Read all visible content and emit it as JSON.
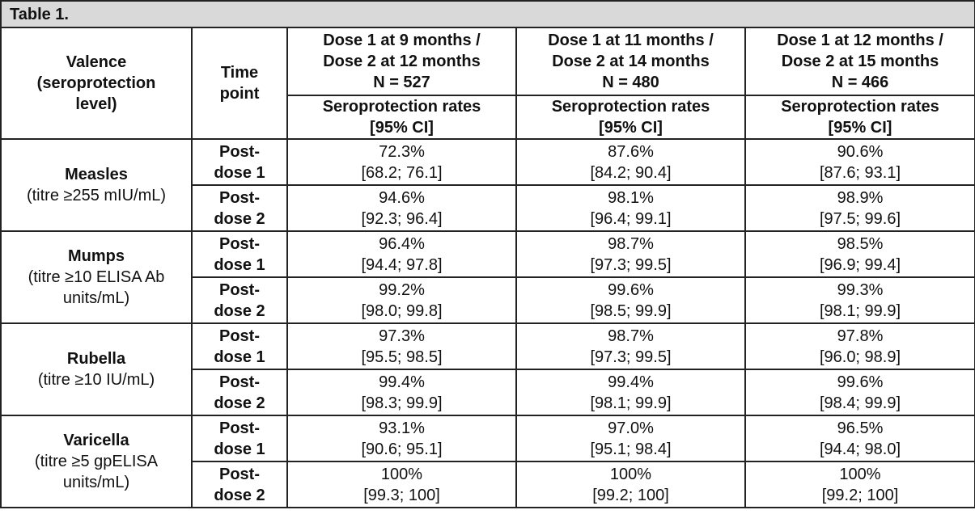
{
  "caption": "Table 1.",
  "headers": {
    "valence": "Valence (seroprotection level)",
    "time_point": "Time point",
    "groups": [
      {
        "line1": "Dose 1 at 9 months /",
        "line2": "Dose 2 at 12 months",
        "n": "N = 527"
      },
      {
        "line1": "Dose 1 at 11 months /",
        "line2": "Dose 2 at 14 months",
        "n": "N = 480"
      },
      {
        "line1": "Dose 1 at 12 months /",
        "line2": "Dose 2 at 15 months",
        "n": "N = 466"
      }
    ],
    "sub": {
      "line1": "Seroprotection rates",
      "line2": "[95% CI]"
    }
  },
  "valences": [
    {
      "name": "Measles",
      "level": "(titre ≥255 mIU/mL)",
      "rows": [
        {
          "time": "Post-dose 1",
          "cells": [
            {
              "rate": "72.3%",
              "ci": "[68.2; 76.1]"
            },
            {
              "rate": "87.6%",
              "ci": "[84.2; 90.4]"
            },
            {
              "rate": "90.6%",
              "ci": "[87.6; 93.1]"
            }
          ]
        },
        {
          "time": "Post-dose 2",
          "cells": [
            {
              "rate": "94.6%",
              "ci": "[92.3; 96.4]"
            },
            {
              "rate": "98.1%",
              "ci": "[96.4; 99.1]"
            },
            {
              "rate": "98.9%",
              "ci": "[97.5; 99.6]"
            }
          ]
        }
      ]
    },
    {
      "name": "Mumps",
      "level": "(titre ≥10 ELISA Ab units/mL)",
      "rows": [
        {
          "time": "Post-dose 1",
          "cells": [
            {
              "rate": "96.4%",
              "ci": "[94.4; 97.8]"
            },
            {
              "rate": "98.7%",
              "ci": "[97.3; 99.5]"
            },
            {
              "rate": "98.5%",
              "ci": "[96.9; 99.4]"
            }
          ]
        },
        {
          "time": "Post-dose 2",
          "cells": [
            {
              "rate": "99.2%",
              "ci": "[98.0; 99.8]"
            },
            {
              "rate": "99.6%",
              "ci": "[98.5; 99.9]"
            },
            {
              "rate": "99.3%",
              "ci": "[98.1; 99.9]"
            }
          ]
        }
      ]
    },
    {
      "name": "Rubella",
      "level": "(titre ≥10 IU/mL)",
      "rows": [
        {
          "time": "Post-dose 1",
          "cells": [
            {
              "rate": "97.3%",
              "ci": "[95.5; 98.5]"
            },
            {
              "rate": "98.7%",
              "ci": "[97.3; 99.5]"
            },
            {
              "rate": "97.8%",
              "ci": "[96.0; 98.9]"
            }
          ]
        },
        {
          "time": "Post-dose 2",
          "cells": [
            {
              "rate": "99.4%",
              "ci": "[98.3; 99.9]"
            },
            {
              "rate": "99.4%",
              "ci": "[98.1; 99.9]"
            },
            {
              "rate": "99.6%",
              "ci": "[98.4; 99.9]"
            }
          ]
        }
      ]
    },
    {
      "name": "Varicella",
      "level": "(titre ≥5 gpELISA units/mL)",
      "rows": [
        {
          "time": "Post-dose 1",
          "cells": [
            {
              "rate": "93.1%",
              "ci": "[90.6; 95.1]"
            },
            {
              "rate": "97.0%",
              "ci": "[95.1; 98.4]"
            },
            {
              "rate": "96.5%",
              "ci": "[94.4; 98.0]"
            }
          ]
        },
        {
          "time": "Post-dose 2",
          "cells": [
            {
              "rate": "100%",
              "ci": "[99.3; 100]"
            },
            {
              "rate": "100%",
              "ci": "[99.2; 100]"
            },
            {
              "rate": "100%",
              "ci": "[99.2; 100]"
            }
          ]
        }
      ]
    }
  ]
}
